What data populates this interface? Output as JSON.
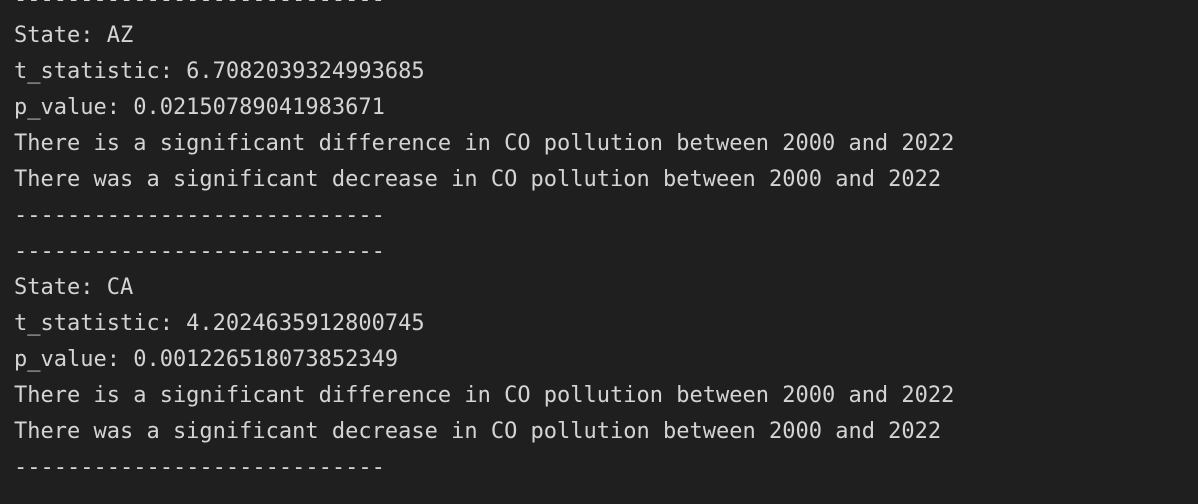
{
  "terminal": {
    "separator": "----------------------------",
    "blocks": [
      {
        "state": "State: AZ",
        "t_statistic": "t_statistic: 6.7082039324993685",
        "p_value": "p_value: 0.02150789041983671",
        "difference": "There is a significant difference in CO pollution between 2000 and 2022",
        "trend": "There was a significant decrease in CO pollution between 2000 and 2022"
      },
      {
        "state": "State: CA",
        "t_statistic": "t_statistic: 4.2024635912800745",
        "p_value": "p_value: 0.001226518073852349",
        "difference": "There is a significant difference in CO pollution between 2000 and 2022",
        "trend": "There was a significant decrease in CO pollution between 2000 and 2022"
      }
    ]
  }
}
